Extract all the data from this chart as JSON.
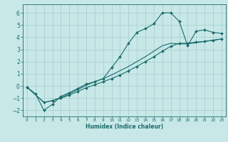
{
  "xlabel": "Humidex (Indice chaleur)",
  "xlim": [
    -0.5,
    23.5
  ],
  "ylim": [
    -2.5,
    6.7
  ],
  "xticks": [
    0,
    1,
    2,
    3,
    4,
    5,
    6,
    7,
    8,
    9,
    10,
    11,
    12,
    13,
    14,
    15,
    16,
    17,
    18,
    19,
    20,
    21,
    22,
    23
  ],
  "yticks": [
    -2,
    -1,
    0,
    1,
    2,
    3,
    4,
    5,
    6
  ],
  "bg_color": "#c8e8e8",
  "grid_color": "#aad0d0",
  "line_color": "#1a6b6b",
  "line1_x": [
    0,
    1,
    2,
    3,
    4,
    5,
    6,
    7,
    8,
    9,
    10,
    11,
    12,
    13,
    14,
    15,
    16,
    17,
    18,
    19,
    20,
    21,
    22,
    23
  ],
  "line1_y": [
    -0.1,
    -0.65,
    -2.0,
    -1.5,
    -0.85,
    -0.55,
    -0.2,
    0.15,
    0.35,
    0.6,
    1.5,
    2.4,
    3.5,
    4.4,
    4.7,
    5.1,
    6.0,
    6.0,
    5.3,
    3.3,
    4.5,
    4.6,
    4.4,
    4.3
  ],
  "line2_x": [
    0,
    2,
    3,
    4,
    5,
    6,
    7,
    8,
    9,
    10,
    11,
    12,
    13,
    14,
    15,
    16,
    17,
    18,
    19,
    20,
    21,
    22,
    23
  ],
  "line2_y": [
    -0.1,
    -1.35,
    -1.2,
    -1.0,
    -0.75,
    -0.45,
    -0.15,
    0.1,
    0.35,
    0.6,
    0.9,
    1.25,
    1.6,
    2.0,
    2.4,
    2.85,
    3.25,
    3.5,
    3.5,
    3.6,
    3.65,
    3.75,
    3.85
  ],
  "line3_x": [
    0,
    2,
    3,
    4,
    5,
    6,
    7,
    8,
    9,
    10,
    11,
    12,
    13,
    14,
    15,
    16,
    17,
    18,
    19,
    20,
    21,
    22,
    23
  ],
  "line3_y": [
    -0.1,
    -1.35,
    -1.2,
    -0.95,
    -0.65,
    -0.3,
    0.05,
    0.35,
    0.6,
    0.9,
    1.25,
    1.6,
    2.0,
    2.4,
    2.85,
    3.3,
    3.5,
    3.45,
    3.45,
    3.55,
    3.65,
    3.75,
    3.85
  ]
}
